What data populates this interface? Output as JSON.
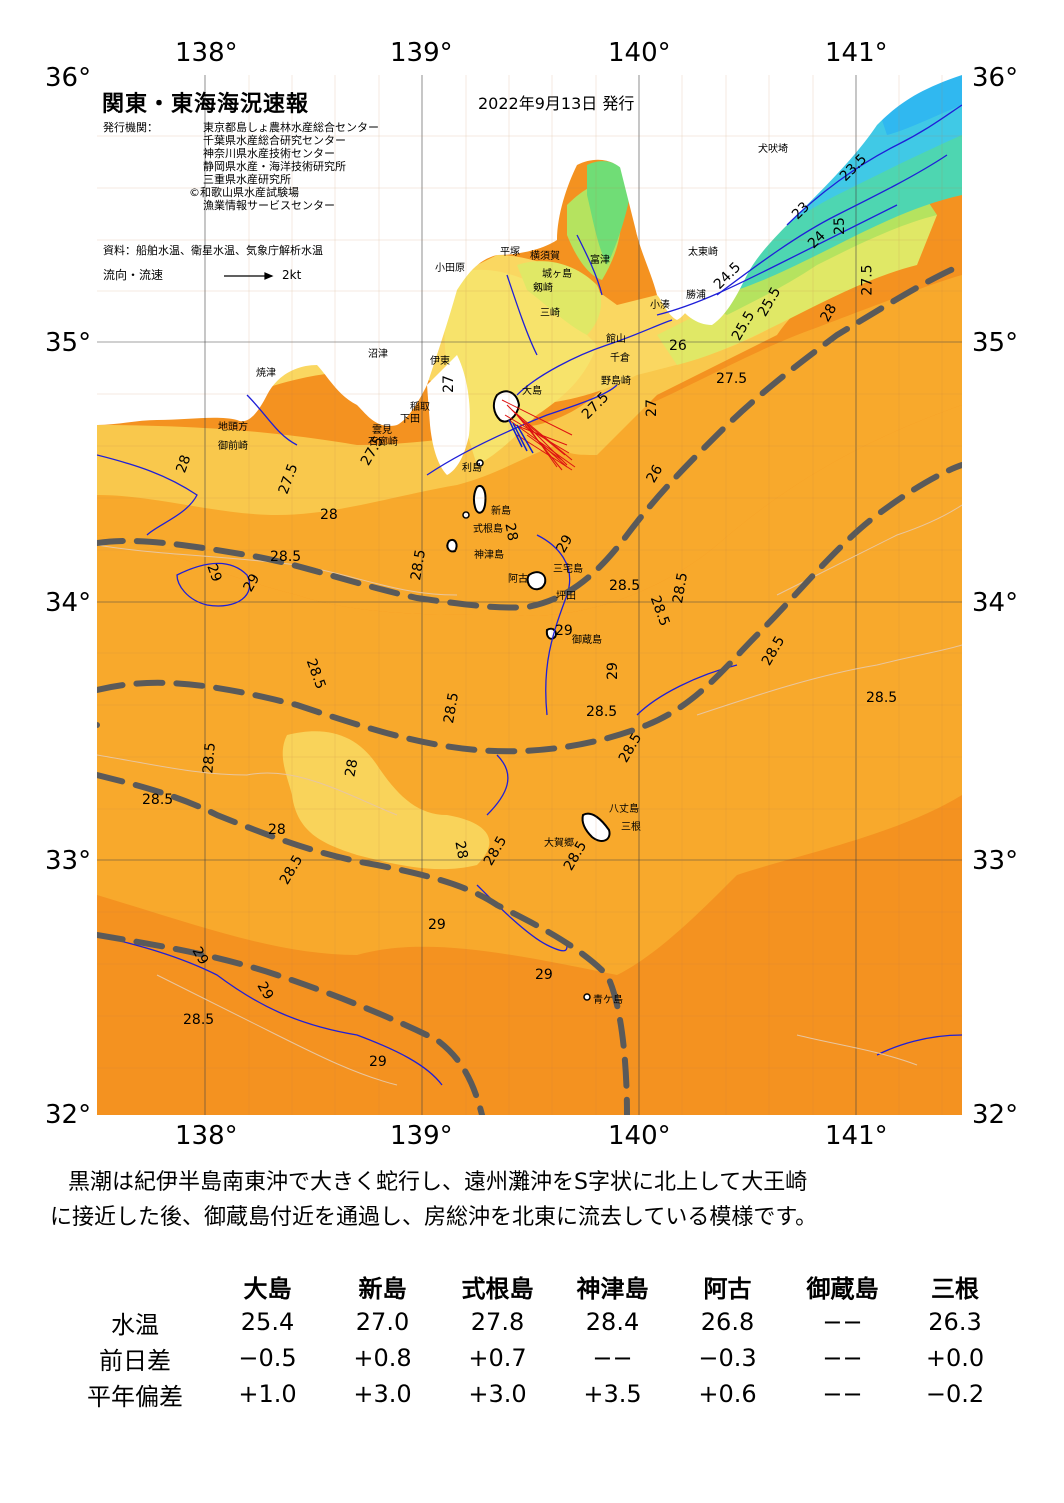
{
  "axes": {
    "lon_top": [
      "138°",
      "139°",
      "140°",
      "141°"
    ],
    "lon_bottom": [
      "138°",
      "139°",
      "140°",
      "141°"
    ],
    "lat_left": [
      "36°",
      "35°",
      "34°",
      "33°",
      "32°"
    ],
    "lat_right": [
      "36°",
      "35°",
      "34°",
      "33°",
      "32°"
    ]
  },
  "header": {
    "title": "関東・東海海況速報",
    "date": "2022年9月13日 発行",
    "issuers_label": "発行機関：",
    "issuers": [
      "東京都島しょ農林水産総合センター",
      "千葉県水産総合研究センター",
      "神奈川県水産技術センター",
      "静岡県水産・海洋技術研究所",
      "三重県水産研究所",
      "©和歌山県水産試験場",
      "漁業情報サービスセンター"
    ],
    "source": "資料：船舶水温、衛星水温、気象庁解析水温",
    "flow_label": "流向・流速",
    "flow_scale": "2kt"
  },
  "places": [
    {
      "name": "大島",
      "key": "oshima"
    },
    {
      "name": "利島",
      "key": "toshima"
    },
    {
      "name": "新島",
      "key": "niijima"
    },
    {
      "name": "式根島",
      "key": "shikinejima"
    },
    {
      "name": "神津島",
      "key": "kozushima"
    },
    {
      "name": "三宅島",
      "key": "miyakejima"
    },
    {
      "name": "阿古",
      "key": "ako"
    },
    {
      "name": "坪田",
      "key": "tsubota"
    },
    {
      "name": "御蔵島",
      "key": "mikurajima"
    },
    {
      "name": "八丈島",
      "key": "hachijojima"
    },
    {
      "name": "三根",
      "key": "mitsune"
    },
    {
      "name": "大賀郷",
      "key": "okago"
    },
    {
      "name": "青ケ島",
      "key": "aogashima"
    },
    {
      "name": "沼津",
      "key": "numazu"
    },
    {
      "name": "伊東",
      "key": "ito"
    },
    {
      "name": "稲取",
      "key": "inatori"
    },
    {
      "name": "下田",
      "key": "shimoda"
    },
    {
      "name": "雲見",
      "key": "kumomi"
    },
    {
      "name": "石廊崎",
      "key": "irozaki"
    },
    {
      "name": "焼津",
      "key": "yaizu"
    },
    {
      "name": "地頭方",
      "key": "jitogata"
    },
    {
      "name": "御前崎",
      "key": "omaezaki"
    },
    {
      "name": "小田原",
      "key": "odawara"
    },
    {
      "name": "平塚",
      "key": "hiratsuka"
    },
    {
      "name": "横須賀",
      "key": "yokosuka"
    },
    {
      "name": "城ヶ島",
      "key": "jogashima"
    },
    {
      "name": "剱崎",
      "key": "tsurugizaki"
    },
    {
      "name": "三崎",
      "key": "misaki"
    },
    {
      "name": "富津",
      "key": "futtsu"
    },
    {
      "name": "館山",
      "key": "tateyama"
    },
    {
      "name": "千倉",
      "key": "chikura"
    },
    {
      "name": "野島崎",
      "key": "nojimazaki"
    },
    {
      "name": "小湊",
      "key": "kominato"
    },
    {
      "name": "勝浦",
      "key": "katsuura"
    },
    {
      "name": "太東崎",
      "key": "taitozaki"
    },
    {
      "name": "犬吠埼",
      "key": "inubozaki"
    }
  ],
  "isotherms": [
    "28.5",
    "28.5",
    "28.5",
    "28.5",
    "28.5",
    "28.5",
    "28.5",
    "28.5",
    "28.5",
    "28.5",
    "28.5",
    "28.5",
    "28.5",
    "28.5",
    "28.5",
    "28.5",
    "28.5",
    "28",
    "28",
    "28",
    "28",
    "28",
    "28",
    "28",
    "29",
    "29",
    "29",
    "29",
    "29",
    "29",
    "29",
    "29",
    "29",
    "29",
    "27.5",
    "27.5",
    "27.5",
    "27.5",
    "27.5",
    "27",
    "27",
    "26",
    "26",
    "25",
    "25.5",
    "25.5",
    "24.5",
    "24",
    "23",
    "23.5"
  ],
  "colors": {
    "sst_29": "#f49220",
    "sst_28_5": "#f8a92c",
    "sst_28": "#f9c84c",
    "sst_27_5": "#fad761",
    "sst_27": "#f7e36b",
    "sst_26": "#e0e866",
    "sst_25": "#b5e35f",
    "sst_24": "#70dd76",
    "sst_23": "#4ed6b1",
    "sst_22": "#40c9e6",
    "kuroshio_axis": "#5a5a5a",
    "contour": "#1f1fd8",
    "land": "#ffffff"
  },
  "summary": [
    "黒潮は紀伊半島南東沖で大きく蛇行し、遠州灘沖をS字状に北上して大王崎",
    "に接近した後、御蔵島付近を通過し、房総沖を北東に流去している模様です。"
  ],
  "table": {
    "columns": [
      "大島",
      "新島",
      "式根島",
      "神津島",
      "阿古",
      "御蔵島",
      "三根"
    ],
    "rows": [
      {
        "label": "水温",
        "values": [
          "25.4",
          "27.0",
          "27.8",
          "28.4",
          "26.8",
          "−−",
          "26.3"
        ]
      },
      {
        "label": "前日差",
        "values": [
          "−0.5",
          "+0.8",
          "+0.7",
          "−−",
          "−0.3",
          "−−",
          "+0.0"
        ]
      },
      {
        "label": "平年偏差",
        "values": [
          "+1.0",
          "+3.0",
          "+3.0",
          "+3.5",
          "+0.6",
          "−−",
          "−0.2"
        ]
      }
    ]
  }
}
